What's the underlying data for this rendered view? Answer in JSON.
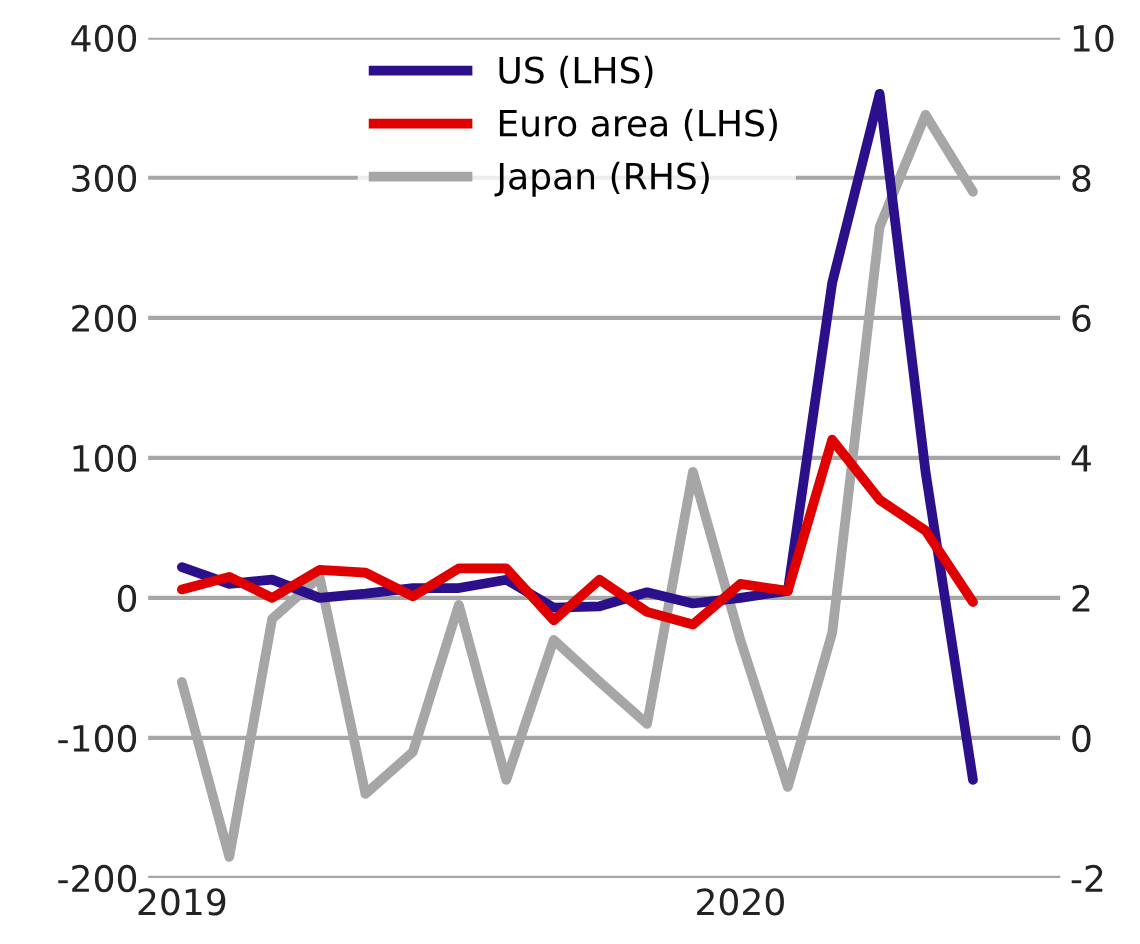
{
  "chart_data": {
    "type": "line",
    "x": [
      "2019-01",
      "2019-02",
      "2019-03",
      "2019-04",
      "2019-05",
      "2019-06",
      "2019-07",
      "2019-08",
      "2019-09",
      "2019-10",
      "2019-11",
      "2019-12",
      "2020-01",
      "2020-02",
      "2020-03",
      "2020-04",
      "2020-05",
      "2020-06"
    ],
    "series": [
      {
        "name": "US (LHS)",
        "color": "#2c0f8a",
        "values": [
          22,
          10,
          13,
          0,
          3,
          7,
          7,
          13,
          -7,
          -6,
          4,
          -4,
          0,
          5,
          225,
          360,
          90,
          -130
        ]
      },
      {
        "name": "Euro area (LHS)",
        "color": "#e00000",
        "values": [
          6,
          15,
          0,
          20,
          18,
          1,
          21,
          21,
          -16,
          13,
          -10,
          -19,
          10,
          5,
          113,
          70,
          48,
          -3
        ]
      },
      {
        "name": "Japan (RHS)",
        "color": "#a6a6a6",
        "axis": "y2",
        "values": [
          0.8,
          -1.7,
          1.7,
          2.3,
          -0.8,
          -0.2,
          1.9,
          -0.6,
          1.4,
          0.8,
          0.2,
          3.8,
          1.4,
          -0.7,
          1.5,
          7.3,
          8.9,
          7.8
        ]
      }
    ],
    "xlim": [
      "2018-12-10",
      "2020-07-28"
    ],
    "xticks": [
      {
        "value": "2019-01",
        "label": "2019"
      },
      {
        "value": "2020-01",
        "label": "2020"
      }
    ],
    "ylim": [
      -200,
      400
    ],
    "yticks": [
      -200,
      -100,
      0,
      100,
      200,
      300,
      400
    ],
    "y2lim": [
      -2,
      10
    ],
    "y2ticks": [
      -2,
      0,
      2,
      4,
      6,
      8,
      10
    ],
    "grid": "y",
    "legend": "top"
  }
}
